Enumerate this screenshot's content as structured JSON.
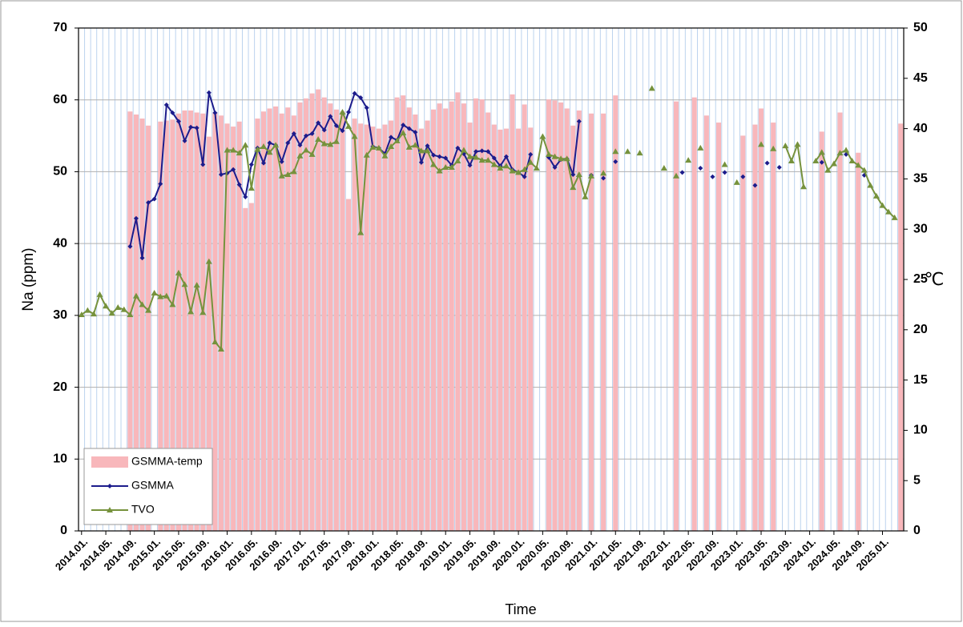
{
  "chart_data": {
    "type": "bar",
    "xlabel": "Time",
    "ylabel": "Na (ppm)",
    "y2label": "℃",
    "ylim": [
      0,
      70
    ],
    "yticks": [
      0,
      10,
      20,
      30,
      40,
      50,
      60,
      70
    ],
    "y2lim": [
      0,
      50
    ],
    "y2ticks": [
      0,
      5,
      10,
      15,
      20,
      25,
      30,
      35,
      40,
      45,
      50
    ],
    "grid": true,
    "legend": "lower left",
    "categories": [
      "2014.01.",
      null,
      null,
      null,
      "2014.05.",
      null,
      null,
      null,
      "2014.09.",
      null,
      null,
      null,
      "2015.01.",
      null,
      null,
      null,
      "2015.05.",
      null,
      null,
      null,
      "2015.09.",
      null,
      null,
      null,
      "2016.01.",
      null,
      null,
      null,
      "2016.05.",
      null,
      null,
      null,
      "2016.09.",
      null,
      null,
      null,
      "2017.01.",
      null,
      null,
      null,
      "2017.05.",
      null,
      null,
      null,
      "2017.09.",
      null,
      null,
      null,
      "2018.01.",
      null,
      null,
      null,
      "2018.05.",
      null,
      null,
      null,
      "2018.09.",
      null,
      null,
      null,
      "2019.01.",
      null,
      null,
      null,
      "2019.05.",
      null,
      null,
      null,
      "2019.09.",
      null,
      null,
      null,
      "2020.01.",
      null,
      null,
      null,
      "2020.05.",
      null,
      null,
      null,
      "2020.09.",
      null,
      null,
      null,
      "2021.01.",
      null,
      null,
      null,
      "2021.05.",
      null,
      null,
      null,
      "2021.09.",
      null,
      null,
      null,
      "2022.01.",
      null,
      null,
      null,
      "2022.05.",
      null,
      null,
      null,
      "2022.09.",
      null,
      null,
      null,
      "2023.01.",
      null,
      null,
      null,
      "2023.05.",
      null,
      null,
      null,
      "2023.09.",
      null,
      null,
      null,
      "2024.01.",
      null,
      null,
      null,
      "2024.05.",
      null,
      null,
      null,
      "2024.09.",
      null,
      null,
      null,
      "2025.01.",
      null,
      null,
      null
    ],
    "series": [
      {
        "name": "GSMMA-temp",
        "type": "bar",
        "axis": "y2",
        "color": "#f8b7bb",
        "values": [
          null,
          null,
          null,
          null,
          null,
          null,
          null,
          null,
          41.7,
          41.4,
          41.0,
          40.3,
          null,
          40.7,
          40.8,
          40.9,
          41.5,
          41.8,
          41.8,
          41.6,
          41.5,
          39.2,
          41.6,
          41.3,
          40.5,
          40.2,
          40.7,
          32.1,
          32.6,
          41.0,
          41.7,
          42.0,
          42.2,
          41.5,
          42.1,
          41.3,
          42.6,
          43.0,
          43.5,
          43.9,
          43.1,
          42.5,
          41.9,
          41.7,
          33.0,
          41.0,
          40.5,
          40.4,
          40.2,
          40.0,
          40.4,
          40.8,
          43.1,
          43.3,
          42.1,
          41.4,
          40.0,
          40.8,
          41.9,
          42.5,
          42.0,
          42.7,
          43.6,
          42.5,
          40.6,
          43.0,
          42.9,
          41.6,
          40.4,
          39.9,
          40.0,
          43.4,
          40.0,
          42.4,
          40.1,
          null,
          null,
          42.9,
          42.8,
          42.6,
          42.0,
          40.3,
          41.8,
          null,
          41.5,
          null,
          41.5,
          null,
          43.3,
          null,
          null,
          null,
          null,
          null,
          null,
          null,
          null,
          null,
          42.7,
          null,
          null,
          43.1,
          null,
          41.3,
          null,
          40.6,
          null,
          null,
          null,
          39.3,
          null,
          40.4,
          42.0,
          null,
          40.6,
          null,
          null,
          null,
          null,
          null,
          null,
          null,
          39.7,
          null,
          null,
          41.6,
          null,
          null,
          37.6,
          null,
          null,
          null,
          null,
          null,
          null,
          40.5
        ]
      },
      {
        "name": "GSMMA",
        "type": "line",
        "marker": "diamond",
        "color": "#1c1c8c",
        "values": [
          null,
          null,
          null,
          null,
          null,
          null,
          null,
          null,
          39.6,
          43.5,
          38.0,
          45.7,
          46.2,
          48.3,
          59.3,
          58.2,
          57.0,
          54.3,
          56.2,
          56.1,
          51.0,
          61.0,
          58.2,
          49.6,
          49.8,
          50.3,
          48.2,
          46.5,
          51.0,
          53.3,
          51.2,
          54.0,
          53.7,
          51.4,
          54.0,
          55.3,
          53.7,
          55.0,
          55.3,
          56.8,
          55.8,
          57.7,
          56.4,
          55.7,
          58.3,
          60.9,
          60.3,
          58.9,
          53.5,
          53.3,
          52.5,
          54.8,
          54.4,
          56.5,
          56.0,
          55.5,
          51.3,
          53.6,
          52.3,
          52.1,
          51.9,
          50.9,
          53.3,
          52.5,
          50.9,
          52.8,
          52.9,
          52.8,
          51.9,
          50.8,
          52.1,
          50.3,
          49.9,
          49.3,
          52.4,
          null,
          null,
          52.0,
          50.6,
          51.7,
          51.8,
          49.6,
          57.0,
          null,
          49.5,
          null,
          49.1,
          null,
          51.4,
          null,
          null,
          null,
          null,
          null,
          null,
          null,
          null,
          null,
          null,
          49.9,
          null,
          null,
          50.5,
          null,
          49.3,
          null,
          49.9,
          null,
          null,
          49.3,
          null,
          48.1,
          null,
          51.2,
          null,
          50.6,
          null,
          null,
          null,
          null,
          null,
          null,
          51.3,
          null,
          null,
          null,
          52.4,
          null,
          null,
          49.5,
          null,
          null,
          null,
          null,
          null,
          null
        ]
      },
      {
        "name": "TVO",
        "type": "line",
        "marker": "triangle",
        "color": "#76923c",
        "values": [
          30.1,
          30.7,
          30.2,
          32.9,
          31.3,
          30.3,
          31.1,
          30.8,
          30.1,
          32.7,
          31.5,
          30.7,
          33.1,
          32.6,
          32.7,
          31.5,
          35.9,
          34.3,
          30.5,
          34.2,
          30.4,
          37.5,
          26.3,
          25.3,
          53.0,
          53.0,
          52.6,
          53.7,
          47.7,
          53.1,
          53.5,
          52.7,
          53.7,
          49.4,
          49.6,
          50.0,
          52.2,
          53.0,
          52.4,
          54.5,
          53.9,
          53.8,
          54.2,
          58.3,
          56.3,
          54.9,
          41.5,
          52.3,
          53.4,
          53.3,
          52.2,
          53.5,
          54.3,
          55.4,
          53.4,
          53.7,
          52.9,
          52.9,
          51.0,
          50.1,
          50.6,
          50.6,
          51.5,
          53.0,
          52.1,
          52.0,
          51.6,
          51.6,
          51.0,
          50.5,
          50.8,
          50.1,
          49.9,
          50.3,
          51.3,
          50.5,
          54.9,
          52.4,
          52.1,
          51.8,
          51.8,
          47.8,
          49.6,
          46.5,
          49.4,
          null,
          49.8,
          null,
          52.8,
          null,
          52.8,
          null,
          52.6,
          null,
          61.6,
          null,
          50.5,
          null,
          49.4,
          null,
          51.6,
          null,
          53.3,
          null,
          null,
          null,
          51.0,
          null,
          48.5,
          null,
          null,
          null,
          53.8,
          null,
          53.2,
          null,
          53.6,
          51.5,
          53.8,
          47.9,
          null,
          51.5,
          52.7,
          50.2,
          51.1,
          52.6,
          53.0,
          51.5,
          50.9,
          50.2,
          48.1,
          46.6,
          45.3,
          44.4,
          43.6,
          null
        ]
      }
    ]
  }
}
